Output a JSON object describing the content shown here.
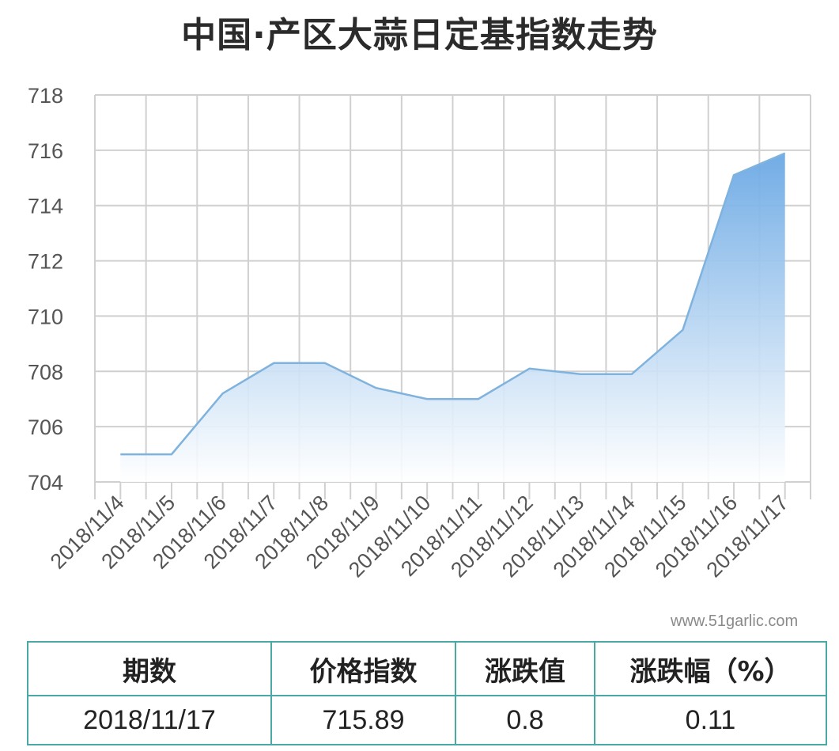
{
  "title": "中国·产区大蒜日定基指数走势",
  "watermark": "www.51garlic.com",
  "chart_data": {
    "type": "area",
    "title": "中国·产区大蒜日定基指数走势",
    "categories": [
      "2018/11/4",
      "2018/11/5",
      "2018/11/6",
      "2018/11/7",
      "2018/11/8",
      "2018/11/9",
      "2018/11/10",
      "2018/11/11",
      "2018/11/12",
      "2018/11/13",
      "2018/11/14",
      "2018/11/15",
      "2018/11/16",
      "2018/11/17"
    ],
    "series": [
      {
        "values": [
          705.0,
          705.0,
          707.2,
          708.3,
          708.3,
          707.4,
          707.0,
          707.0,
          708.1,
          707.9,
          707.9,
          709.5,
          715.1,
          715.89
        ]
      }
    ],
    "ylim": [
      704,
      718
    ],
    "yticks": [
      704,
      706,
      708,
      710,
      712,
      714,
      716,
      718
    ],
    "grid": true,
    "line_color": "#7fb2dd",
    "fill_top_color": "#6aa8e4",
    "fill_bottom_color": "#ffffff"
  },
  "table": {
    "headers": [
      "期数",
      "价格指数",
      "涨跌值",
      "涨跌幅（%）"
    ],
    "row": [
      "2018/11/17",
      "715.89",
      "0.8",
      "0.11"
    ]
  },
  "colors": {
    "grid": "#d0d0d0",
    "table_border": "#4aa9a4"
  }
}
